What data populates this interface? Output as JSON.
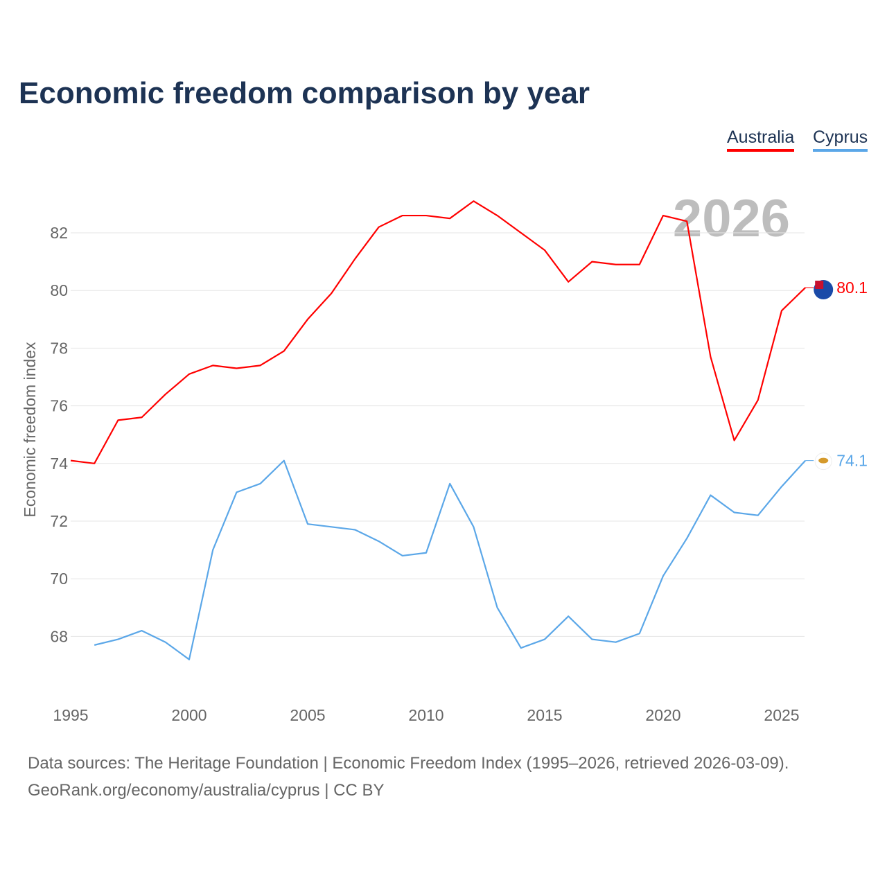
{
  "chart_data": {
    "type": "line",
    "title": "Economic freedom comparison by year",
    "xlabel": "",
    "ylabel": "Economic freedom index",
    "xlim": [
      1995,
      2026
    ],
    "ylim": [
      66,
      84
    ],
    "x_ticks": [
      1995,
      2000,
      2005,
      2010,
      2015,
      2020,
      2025
    ],
    "y_ticks": [
      68,
      70,
      72,
      74,
      76,
      78,
      80,
      82
    ],
    "grid": true,
    "legend_position": "top-right",
    "year_watermark": "2026",
    "series": [
      {
        "name": "Australia",
        "color": "#ff0000",
        "end_label": "80.1",
        "x": [
          1995,
          1996,
          1997,
          1998,
          1999,
          2000,
          2001,
          2002,
          2003,
          2004,
          2005,
          2006,
          2007,
          2008,
          2009,
          2010,
          2011,
          2012,
          2013,
          2014,
          2015,
          2016,
          2017,
          2018,
          2019,
          2020,
          2021,
          2022,
          2023,
          2024,
          2025,
          2026
        ],
        "values": [
          74.1,
          74.0,
          75.5,
          75.6,
          76.4,
          77.1,
          77.4,
          77.3,
          77.4,
          77.9,
          79.0,
          79.9,
          81.1,
          82.2,
          82.6,
          82.6,
          82.5,
          83.1,
          82.6,
          82.0,
          81.4,
          80.3,
          81.0,
          80.9,
          80.9,
          82.6,
          82.4,
          77.7,
          74.8,
          76.2,
          79.3,
          80.1
        ]
      },
      {
        "name": "Cyprus",
        "color": "#5ba7e8",
        "end_label": "74.1",
        "x": [
          1996,
          1997,
          1998,
          1999,
          2000,
          2001,
          2002,
          2003,
          2004,
          2005,
          2006,
          2007,
          2008,
          2009,
          2010,
          2011,
          2012,
          2013,
          2014,
          2015,
          2016,
          2017,
          2018,
          2019,
          2020,
          2021,
          2022,
          2023,
          2024,
          2025,
          2026
        ],
        "values": [
          67.7,
          67.9,
          68.2,
          67.8,
          67.2,
          71.0,
          73.0,
          73.3,
          74.1,
          71.9,
          71.8,
          71.7,
          71.3,
          70.8,
          70.9,
          73.3,
          71.8,
          69.0,
          67.6,
          67.9,
          68.7,
          67.9,
          67.8,
          68.1,
          70.1,
          71.4,
          72.9,
          72.3,
          72.2,
          73.2,
          74.1
        ]
      }
    ]
  },
  "footer": {
    "line1": "Data sources: The Heritage Foundation | Economic Freedom Index (1995–2026, retrieved 2026-03-09).",
    "line2": "GeoRank.org/economy/australia/cyprus | CC BY"
  }
}
